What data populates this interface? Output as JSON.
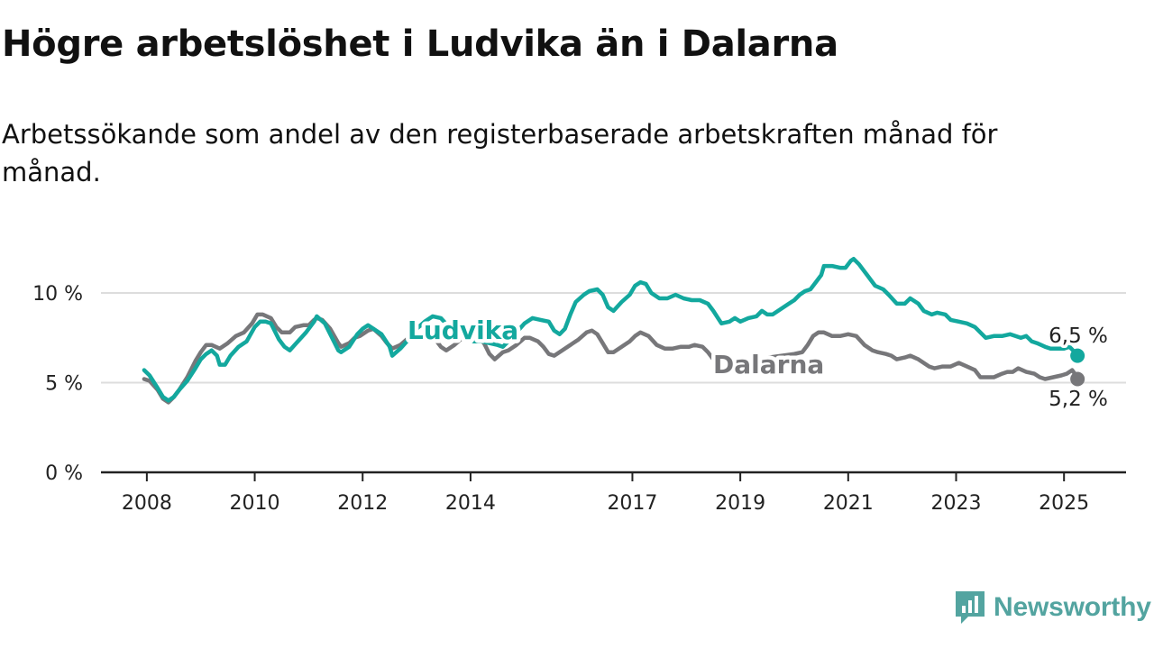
{
  "title": "Högre arbetslöshet i Ludvika än i Dalarna",
  "subtitle": "Arbetssökande som andel av den registerbaserade arbetskraften månad för månad.",
  "brand": {
    "name": "Newsworthy",
    "color": "#53a4a0"
  },
  "colors": {
    "ludvika": "#13a89e",
    "dalarna": "#77777a",
    "grid": "#dddddd",
    "axis": "#222222"
  },
  "chart_data": {
    "type": "line",
    "title": "Högre arbetslöshet i Ludvika än i Dalarna",
    "y_ticks": [
      {
        "value": 0,
        "label": "0 %"
      },
      {
        "value": 5,
        "label": "5 %"
      },
      {
        "value": 10,
        "label": "10 %"
      }
    ],
    "x_ticks": [
      {
        "value": 2008,
        "label": "2008"
      },
      {
        "value": 2010,
        "label": "2010"
      },
      {
        "value": 2012,
        "label": "2012"
      },
      {
        "value": 2014,
        "label": "2014"
      },
      {
        "value": 2017,
        "label": "2017"
      },
      {
        "value": 2019,
        "label": "2019"
      },
      {
        "value": 2021,
        "label": "2021"
      },
      {
        "value": 2023,
        "label": "2023"
      },
      {
        "value": 2025,
        "label": "2025"
      }
    ],
    "xlim": [
      2007.15,
      2026.15
    ],
    "ylim": [
      0,
      10
    ],
    "grid": true,
    "series": [
      {
        "name": "Ludvika",
        "end_label": "6,5 %",
        "points": [
          [
            2007.95,
            5.7
          ],
          [
            2008.05,
            5.4
          ],
          [
            2008.2,
            4.7
          ],
          [
            2008.3,
            4.2
          ],
          [
            2008.4,
            4.0
          ],
          [
            2008.5,
            4.2
          ],
          [
            2008.6,
            4.6
          ],
          [
            2008.75,
            5.1
          ],
          [
            2008.9,
            5.8
          ],
          [
            2009.0,
            6.3
          ],
          [
            2009.1,
            6.6
          ],
          [
            2009.2,
            6.8
          ],
          [
            2009.3,
            6.5
          ],
          [
            2009.35,
            6.0
          ],
          [
            2009.45,
            6.0
          ],
          [
            2009.55,
            6.5
          ],
          [
            2009.7,
            7.0
          ],
          [
            2009.85,
            7.3
          ],
          [
            2010.0,
            8.1
          ],
          [
            2010.1,
            8.4
          ],
          [
            2010.2,
            8.4
          ],
          [
            2010.3,
            8.3
          ],
          [
            2010.45,
            7.4
          ],
          [
            2010.55,
            7.0
          ],
          [
            2010.65,
            6.8
          ],
          [
            2010.8,
            7.3
          ],
          [
            2010.95,
            7.8
          ],
          [
            2011.1,
            8.4
          ],
          [
            2011.15,
            8.7
          ],
          [
            2011.3,
            8.3
          ],
          [
            2011.45,
            7.4
          ],
          [
            2011.55,
            6.8
          ],
          [
            2011.6,
            6.7
          ],
          [
            2011.75,
            7.0
          ],
          [
            2011.9,
            7.7
          ],
          [
            2012.0,
            8.0
          ],
          [
            2012.1,
            8.2
          ],
          [
            2012.2,
            8.0
          ],
          [
            2012.35,
            7.7
          ],
          [
            2012.5,
            7.0
          ],
          [
            2012.55,
            6.5
          ],
          [
            2012.7,
            6.9
          ],
          [
            2012.85,
            7.4
          ],
          [
            2013.0,
            8.0
          ],
          [
            2013.15,
            8.4
          ],
          [
            2013.3,
            8.7
          ],
          [
            2013.45,
            8.6
          ],
          [
            2013.6,
            8.1
          ],
          [
            2013.75,
            7.7
          ],
          [
            2013.9,
            7.5
          ],
          [
            2014.05,
            7.3
          ],
          [
            2014.2,
            7.3
          ],
          [
            2014.35,
            7.2
          ],
          [
            2014.5,
            7.1
          ],
          [
            2014.6,
            7.0
          ],
          [
            2014.7,
            7.3
          ],
          [
            2014.85,
            7.8
          ],
          [
            2015.0,
            8.3
          ],
          [
            2015.15,
            8.6
          ],
          [
            2015.3,
            8.5
          ],
          [
            2015.45,
            8.4
          ],
          [
            2015.55,
            7.9
          ],
          [
            2015.65,
            7.7
          ],
          [
            2015.75,
            8.0
          ],
          [
            2015.85,
            8.8
          ],
          [
            2015.95,
            9.5
          ],
          [
            2016.1,
            9.9
          ],
          [
            2016.2,
            10.1
          ],
          [
            2016.35,
            10.2
          ],
          [
            2016.45,
            9.9
          ],
          [
            2016.55,
            9.2
          ],
          [
            2016.65,
            9.0
          ],
          [
            2016.8,
            9.5
          ],
          [
            2016.95,
            9.9
          ],
          [
            2017.05,
            10.4
          ],
          [
            2017.15,
            10.6
          ],
          [
            2017.25,
            10.5
          ],
          [
            2017.35,
            10.0
          ],
          [
            2017.5,
            9.7
          ],
          [
            2017.65,
            9.7
          ],
          [
            2017.8,
            9.9
          ],
          [
            2017.95,
            9.7
          ],
          [
            2018.1,
            9.6
          ],
          [
            2018.25,
            9.6
          ],
          [
            2018.4,
            9.4
          ],
          [
            2018.5,
            9.0
          ],
          [
            2018.65,
            8.3
          ],
          [
            2018.8,
            8.4
          ],
          [
            2018.9,
            8.6
          ],
          [
            2019.0,
            8.4
          ],
          [
            2019.15,
            8.6
          ],
          [
            2019.3,
            8.7
          ],
          [
            2019.4,
            9.0
          ],
          [
            2019.5,
            8.8
          ],
          [
            2019.6,
            8.8
          ],
          [
            2019.75,
            9.1
          ],
          [
            2019.9,
            9.4
          ],
          [
            2020.0,
            9.6
          ],
          [
            2020.1,
            9.9
          ],
          [
            2020.2,
            10.1
          ],
          [
            2020.3,
            10.2
          ],
          [
            2020.4,
            10.6
          ],
          [
            2020.5,
            11.0
          ],
          [
            2020.55,
            11.5
          ],
          [
            2020.7,
            11.5
          ],
          [
            2020.85,
            11.4
          ],
          [
            2020.95,
            11.4
          ],
          [
            2021.05,
            11.8
          ],
          [
            2021.1,
            11.9
          ],
          [
            2021.2,
            11.6
          ],
          [
            2021.35,
            11.0
          ],
          [
            2021.5,
            10.4
          ],
          [
            2021.65,
            10.2
          ],
          [
            2021.75,
            9.9
          ],
          [
            2021.9,
            9.4
          ],
          [
            2022.05,
            9.4
          ],
          [
            2022.15,
            9.7
          ],
          [
            2022.3,
            9.4
          ],
          [
            2022.4,
            9.0
          ],
          [
            2022.55,
            8.8
          ],
          [
            2022.65,
            8.9
          ],
          [
            2022.8,
            8.8
          ],
          [
            2022.9,
            8.5
          ],
          [
            2023.05,
            8.4
          ],
          [
            2023.2,
            8.3
          ],
          [
            2023.35,
            8.1
          ],
          [
            2023.45,
            7.8
          ],
          [
            2023.55,
            7.5
          ],
          [
            2023.7,
            7.6
          ],
          [
            2023.85,
            7.6
          ],
          [
            2024.0,
            7.7
          ],
          [
            2024.1,
            7.6
          ],
          [
            2024.2,
            7.5
          ],
          [
            2024.3,
            7.6
          ],
          [
            2024.4,
            7.3
          ],
          [
            2024.5,
            7.2
          ],
          [
            2024.65,
            7.0
          ],
          [
            2024.75,
            6.9
          ],
          [
            2024.9,
            6.9
          ],
          [
            2025.0,
            6.9
          ],
          [
            2025.1,
            7.0
          ],
          [
            2025.2,
            6.7
          ],
          [
            2025.25,
            6.5
          ]
        ]
      },
      {
        "name": "Dalarna",
        "end_label": "5,2 %",
        "points": [
          [
            2007.95,
            5.2
          ],
          [
            2008.05,
            5.1
          ],
          [
            2008.2,
            4.6
          ],
          [
            2008.3,
            4.1
          ],
          [
            2008.4,
            3.9
          ],
          [
            2008.5,
            4.2
          ],
          [
            2008.6,
            4.6
          ],
          [
            2008.75,
            5.3
          ],
          [
            2008.9,
            6.2
          ],
          [
            2009.0,
            6.7
          ],
          [
            2009.1,
            7.1
          ],
          [
            2009.2,
            7.1
          ],
          [
            2009.35,
            6.9
          ],
          [
            2009.5,
            7.2
          ],
          [
            2009.65,
            7.6
          ],
          [
            2009.8,
            7.8
          ],
          [
            2009.95,
            8.3
          ],
          [
            2010.05,
            8.8
          ],
          [
            2010.15,
            8.8
          ],
          [
            2010.3,
            8.6
          ],
          [
            2010.4,
            8.1
          ],
          [
            2010.5,
            7.8
          ],
          [
            2010.65,
            7.8
          ],
          [
            2010.75,
            8.1
          ],
          [
            2010.9,
            8.2
          ],
          [
            2011.0,
            8.2
          ],
          [
            2011.1,
            8.5
          ],
          [
            2011.15,
            8.6
          ],
          [
            2011.25,
            8.5
          ],
          [
            2011.4,
            8.0
          ],
          [
            2011.55,
            7.2
          ],
          [
            2011.6,
            7.0
          ],
          [
            2011.75,
            7.2
          ],
          [
            2011.85,
            7.5
          ],
          [
            2011.95,
            7.6
          ],
          [
            2012.1,
            7.9
          ],
          [
            2012.2,
            8.0
          ],
          [
            2012.35,
            7.6
          ],
          [
            2012.45,
            7.2
          ],
          [
            2012.55,
            6.9
          ],
          [
            2012.7,
            7.1
          ],
          [
            2012.85,
            7.5
          ],
          [
            2013.0,
            8.1
          ],
          [
            2013.1,
            8.2
          ],
          [
            2013.2,
            8.0
          ],
          [
            2013.3,
            7.6
          ],
          [
            2013.45,
            7.0
          ],
          [
            2013.55,
            6.8
          ],
          [
            2013.7,
            7.1
          ],
          [
            2013.85,
            7.5
          ],
          [
            2014.0,
            7.6
          ],
          [
            2014.1,
            7.6
          ],
          [
            2014.25,
            7.2
          ],
          [
            2014.35,
            6.6
          ],
          [
            2014.45,
            6.3
          ],
          [
            2014.6,
            6.7
          ],
          [
            2014.7,
            6.8
          ],
          [
            2014.85,
            7.1
          ],
          [
            2015.0,
            7.5
          ],
          [
            2015.1,
            7.5
          ],
          [
            2015.25,
            7.3
          ],
          [
            2015.35,
            7.0
          ],
          [
            2015.45,
            6.6
          ],
          [
            2015.55,
            6.5
          ],
          [
            2015.7,
            6.8
          ],
          [
            2015.85,
            7.1
          ],
          [
            2016.0,
            7.4
          ],
          [
            2016.15,
            7.8
          ],
          [
            2016.25,
            7.9
          ],
          [
            2016.35,
            7.7
          ],
          [
            2016.45,
            7.2
          ],
          [
            2016.55,
            6.7
          ],
          [
            2016.65,
            6.7
          ],
          [
            2016.8,
            7.0
          ],
          [
            2016.95,
            7.3
          ],
          [
            2017.05,
            7.6
          ],
          [
            2017.15,
            7.8
          ],
          [
            2017.3,
            7.6
          ],
          [
            2017.45,
            7.1
          ],
          [
            2017.6,
            6.9
          ],
          [
            2017.75,
            6.9
          ],
          [
            2017.9,
            7.0
          ],
          [
            2018.05,
            7.0
          ],
          [
            2018.15,
            7.1
          ],
          [
            2018.3,
            7.0
          ],
          [
            2018.4,
            6.7
          ],
          [
            2018.5,
            6.3
          ],
          [
            2018.55,
            6.0
          ],
          [
            2020.0,
            6.6
          ],
          [
            2020.15,
            6.7
          ],
          [
            2020.25,
            7.1
          ],
          [
            2020.35,
            7.6
          ],
          [
            2020.45,
            7.8
          ],
          [
            2020.55,
            7.8
          ],
          [
            2020.7,
            7.6
          ],
          [
            2020.85,
            7.6
          ],
          [
            2021.0,
            7.7
          ],
          [
            2021.15,
            7.6
          ],
          [
            2021.3,
            7.1
          ],
          [
            2021.45,
            6.8
          ],
          [
            2021.55,
            6.7
          ],
          [
            2021.7,
            6.6
          ],
          [
            2021.8,
            6.5
          ],
          [
            2021.9,
            6.3
          ],
          [
            2022.05,
            6.4
          ],
          [
            2022.15,
            6.5
          ],
          [
            2022.3,
            6.3
          ],
          [
            2022.4,
            6.1
          ],
          [
            2022.5,
            5.9
          ],
          [
            2022.6,
            5.8
          ],
          [
            2022.75,
            5.9
          ],
          [
            2022.9,
            5.9
          ],
          [
            2023.05,
            6.1
          ],
          [
            2023.2,
            5.9
          ],
          [
            2023.35,
            5.7
          ],
          [
            2023.45,
            5.3
          ],
          [
            2023.55,
            5.3
          ],
          [
            2023.7,
            5.3
          ],
          [
            2023.85,
            5.5
          ],
          [
            2023.95,
            5.6
          ],
          [
            2024.05,
            5.6
          ],
          [
            2024.15,
            5.8
          ],
          [
            2024.3,
            5.6
          ],
          [
            2024.45,
            5.5
          ],
          [
            2024.55,
            5.3
          ],
          [
            2024.65,
            5.2
          ],
          [
            2024.8,
            5.3
          ],
          [
            2024.95,
            5.4
          ],
          [
            2025.05,
            5.5
          ],
          [
            2025.15,
            5.7
          ],
          [
            2025.2,
            5.5
          ],
          [
            2025.25,
            5.2
          ]
        ]
      }
    ]
  }
}
